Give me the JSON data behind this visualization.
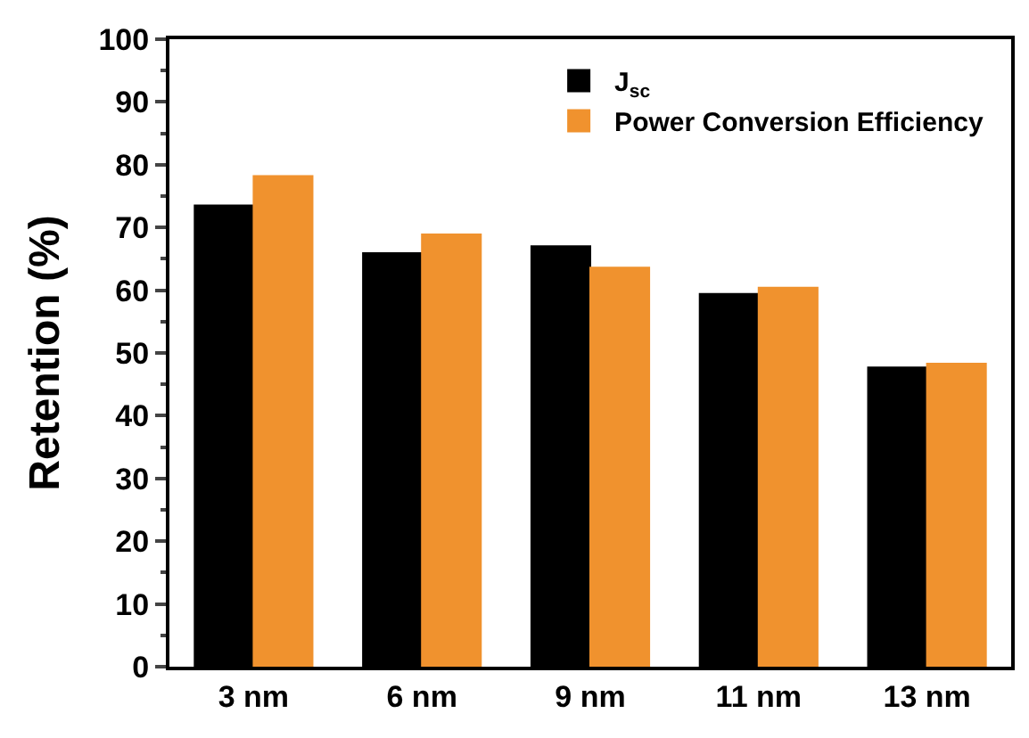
{
  "chart_data": {
    "type": "bar",
    "ylabel": "Retention (%)",
    "categories": [
      "3 nm",
      "6 nm",
      "9 nm",
      "11 nm",
      "13 nm"
    ],
    "series": [
      {
        "name": "J$_{sc}$",
        "color": "#000000",
        "values": [
          73.5,
          65.9,
          67.0,
          59.4,
          47.7
        ]
      },
      {
        "name": "Power Conversion Efficiency",
        "color": "#f0922e",
        "values": [
          78.2,
          68.9,
          63.6,
          60.4,
          48.3
        ]
      }
    ],
    "ylim": [
      0,
      100
    ],
    "yticks": [
      0,
      10,
      20,
      30,
      40,
      50,
      60,
      70,
      80,
      90,
      100
    ],
    "legend": "top right"
  }
}
